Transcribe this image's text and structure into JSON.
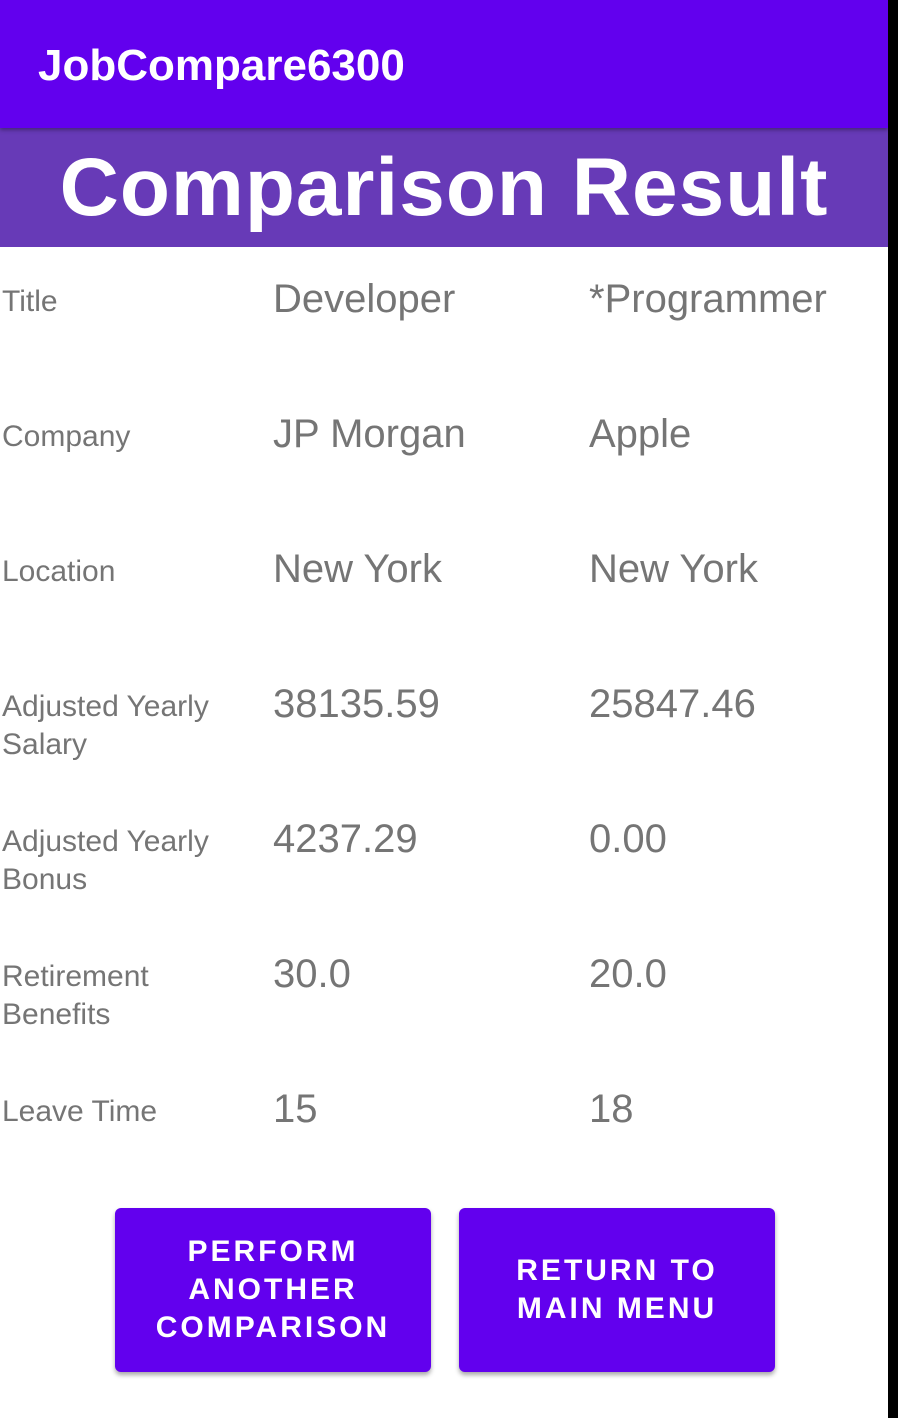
{
  "app_bar": {
    "title": "JobCompare6300"
  },
  "header": {
    "title": "Comparison Result"
  },
  "comparison": {
    "rows": [
      {
        "label": "Title",
        "job_a": "Developer",
        "job_b": "*Programmer"
      },
      {
        "label": "Company",
        "job_a": "JP Morgan",
        "job_b": "Apple"
      },
      {
        "label": "Location",
        "job_a": "New York",
        "job_b": "New York"
      },
      {
        "label": "Adjusted Yearly Salary",
        "job_a": "38135.59",
        "job_b": "25847.46"
      },
      {
        "label": "Adjusted Yearly Bonus",
        "job_a": "4237.29",
        "job_b": "0.00"
      },
      {
        "label": "Retirement Benefits",
        "job_a": "30.0",
        "job_b": "20.0"
      },
      {
        "label": "Leave Time",
        "job_a": "15",
        "job_b": "18"
      }
    ]
  },
  "buttons": {
    "perform_another": "PERFORM ANOTHER COMPARISON",
    "return_main": "RETURN TO MAIN MENU"
  },
  "colors": {
    "app_bar": "#6200ee",
    "header_banner": "#673ab7",
    "button": "#6200ee",
    "text_secondary": "#757575"
  }
}
